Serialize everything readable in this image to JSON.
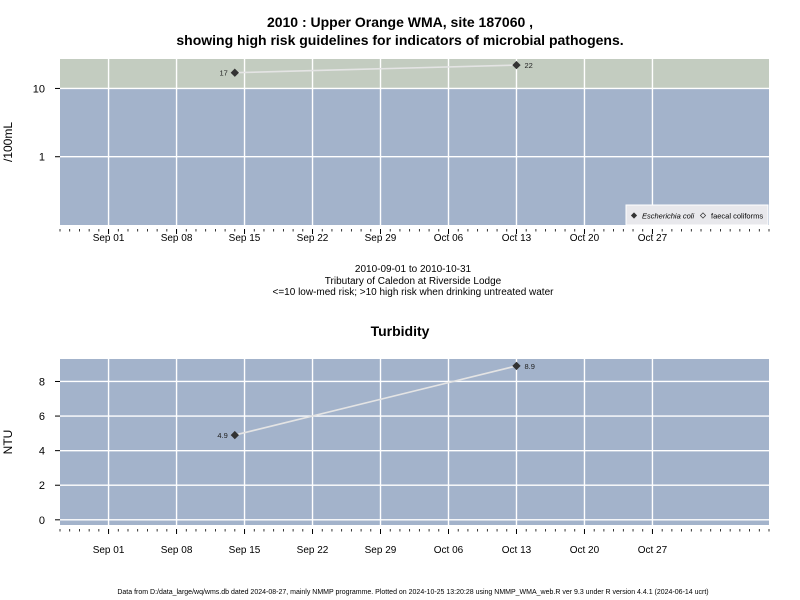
{
  "title_line1": "2010 : Upper Orange WMA, site 187060 ,",
  "title_line2": "showing high risk guidelines for indicators of microbial pathogens.",
  "subtitle": {
    "date_range": "2010-09-01 to 2010-10-31",
    "site": "Tributary of Caledon at Riverside Lodge",
    "risk_note": "<=10 low-med risk; >10 high risk when drinking untreated water"
  },
  "footer": "Data from D:/data_large/wq/wms.db dated 2024-08-27, mainly NMMP programme. Plotted on 2024-10-25 13:20:28 using NMMP_WMA_web.R ver 9.3 under R version 4.4.1 (2024-06-14 ucrt)",
  "colors": {
    "panel_bg": "#a3b3cb",
    "high_risk_band": "#c3ccc0",
    "grid": "#ffffff",
    "line": "#e4e4e4",
    "marker": "#333333"
  },
  "chart_data": [
    {
      "type": "line",
      "title": "",
      "ylabel": "/100mL",
      "y_scale": "log",
      "ylim": [
        0.1,
        27
      ],
      "yticks": [
        1,
        10
      ],
      "ytick_labels": [
        "1",
        "10"
      ],
      "xlim": [
        "2010-08-27",
        "2010-11-08"
      ],
      "xticks": [
        "2010-09-01",
        "2010-09-08",
        "2010-09-15",
        "2010-09-22",
        "2010-09-29",
        "2010-10-06",
        "2010-10-13",
        "2010-10-20",
        "2010-10-27"
      ],
      "xtick_labels": [
        "Sep 01",
        "Sep 08",
        "Sep 15",
        "Sep 22",
        "Sep 29",
        "Oct 06",
        "Oct 13",
        "Oct 20",
        "Oct 27"
      ],
      "high_risk_threshold": 10,
      "grid": true,
      "legend_position": "bottom-right",
      "series": [
        {
          "name": "Escherichia coli",
          "marker": "filled-diamond",
          "x": [
            "2010-09-14",
            "2010-10-13"
          ],
          "y": [
            17,
            22
          ],
          "labels": [
            "17",
            "22"
          ]
        },
        {
          "name": "faecal coliforms",
          "marker": "open-diamond",
          "x": [],
          "y": [],
          "labels": []
        }
      ]
    },
    {
      "type": "line",
      "title": "Turbidity",
      "ylabel": "NTU",
      "y_scale": "linear",
      "ylim": [
        -0.3,
        9.3
      ],
      "yticks": [
        0,
        2,
        4,
        6,
        8
      ],
      "ytick_labels": [
        "0",
        "2",
        "4",
        "6",
        "8"
      ],
      "xlim": [
        "2010-08-27",
        "2010-11-08"
      ],
      "xticks": [
        "2010-09-01",
        "2010-09-08",
        "2010-09-15",
        "2010-09-22",
        "2010-09-29",
        "2010-10-06",
        "2010-10-13",
        "2010-10-20",
        "2010-10-27"
      ],
      "xtick_labels": [
        "Sep 01",
        "Sep 08",
        "Sep 15",
        "Sep 22",
        "Sep 29",
        "Oct 06",
        "Oct 13",
        "Oct 20",
        "Oct 27"
      ],
      "grid": true,
      "series": [
        {
          "name": "",
          "marker": "filled-diamond",
          "x": [
            "2010-09-14",
            "2010-10-13"
          ],
          "y": [
            4.9,
            8.9
          ],
          "labels": [
            "4.9",
            "8.9"
          ]
        }
      ]
    }
  ]
}
